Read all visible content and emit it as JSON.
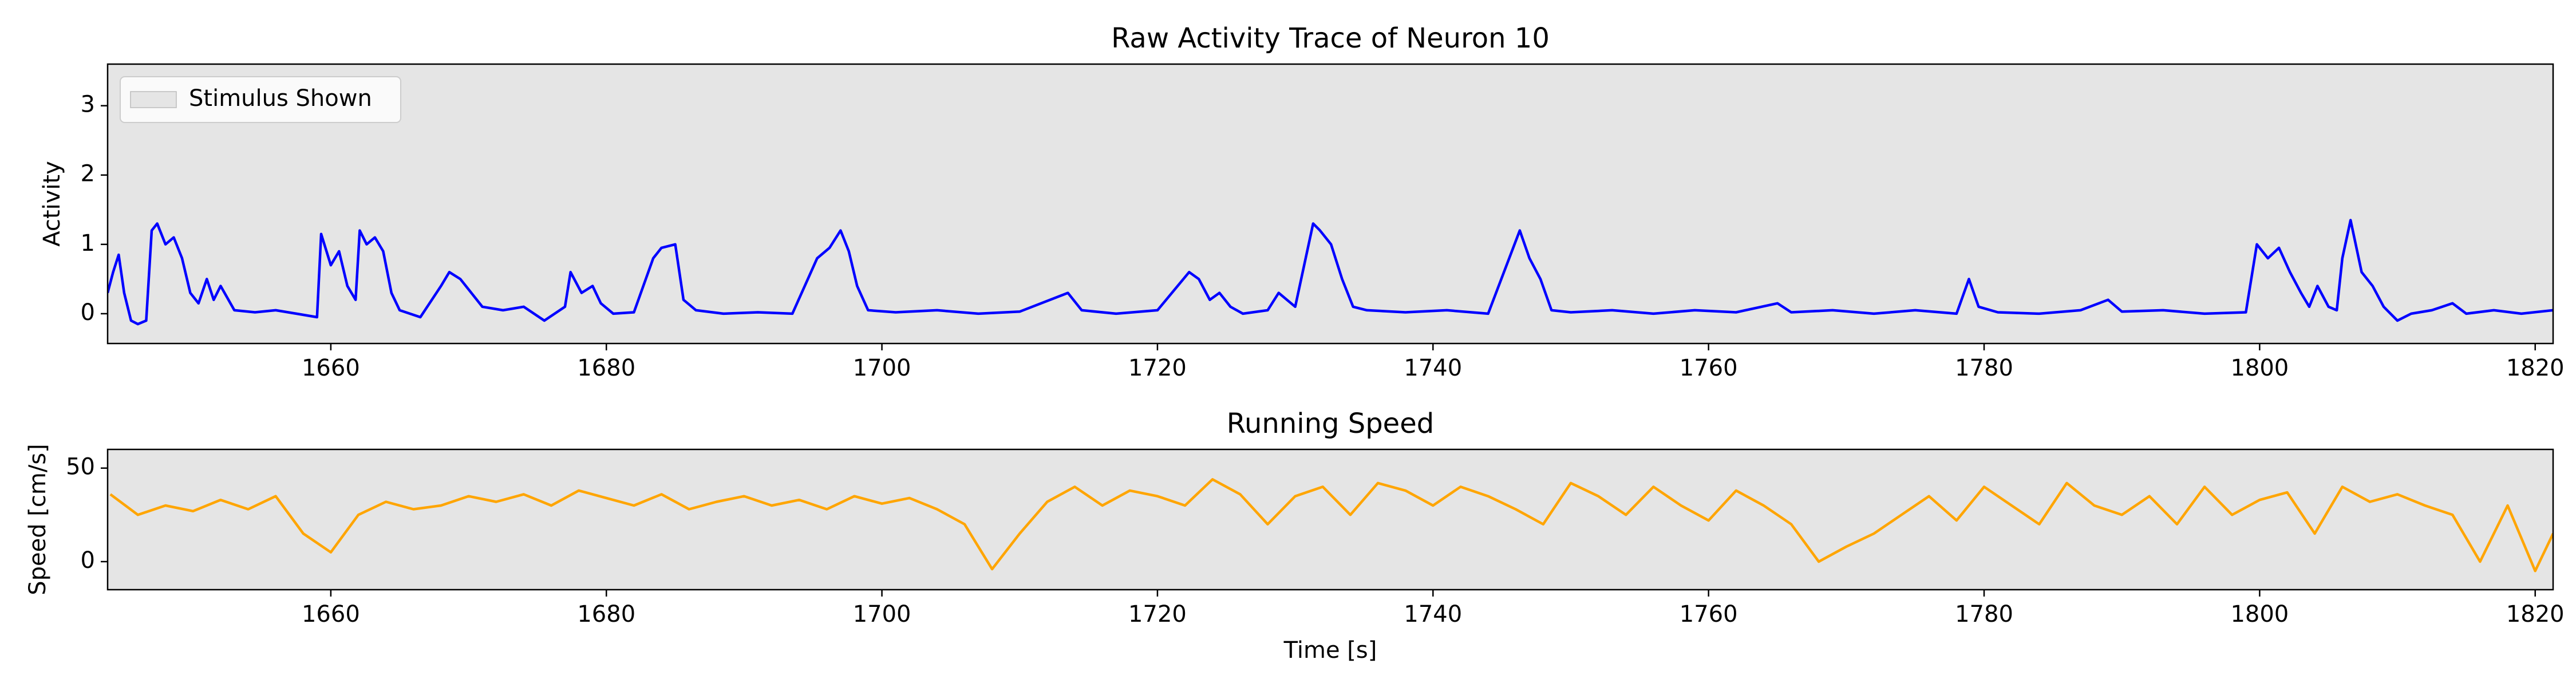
{
  "chart_data": [
    {
      "type": "line",
      "title": "Raw Activity Trace of Neuron 10",
      "ylabel": "Activity",
      "xlim": [
        1643.8,
        1821.3
      ],
      "ylim": [
        -0.43,
        3.6
      ],
      "xticks": [
        1660,
        1680,
        1700,
        1720,
        1740,
        1760,
        1780,
        1800,
        1820
      ],
      "yticks": [
        0,
        1,
        2,
        3
      ],
      "legend": "upper left",
      "spans": [
        {
          "label": "Stimulus Shown",
          "start": 1643.8,
          "end": 1821.3,
          "color": "#e5e5e5"
        }
      ],
      "x": [
        1643.8,
        1644.2,
        1644.6,
        1645.0,
        1645.5,
        1646.0,
        1646.6,
        1647.0,
        1647.4,
        1648.0,
        1648.6,
        1649.2,
        1649.8,
        1650.4,
        1651.0,
        1651.5,
        1652.0,
        1653.0,
        1654.5,
        1656.0,
        1657.5,
        1659.0,
        1659.3,
        1660.0,
        1660.6,
        1661.2,
        1661.8,
        1662.1,
        1662.6,
        1663.2,
        1663.8,
        1664.4,
        1665.0,
        1666.5,
        1668.0,
        1668.6,
        1669.4,
        1670.2,
        1671.0,
        1672.5,
        1674.0,
        1675.5,
        1677.0,
        1677.4,
        1678.2,
        1679.0,
        1679.6,
        1680.5,
        1682.0,
        1683.4,
        1684.0,
        1685.0,
        1685.6,
        1686.5,
        1688.5,
        1691.0,
        1693.5,
        1695.3,
        1696.2,
        1697.0,
        1697.6,
        1698.2,
        1699.0,
        1701.0,
        1704.0,
        1707.0,
        1710.0,
        1713.5,
        1714.5,
        1717.0,
        1720.0,
        1722.3,
        1723.0,
        1723.8,
        1724.5,
        1725.3,
        1726.2,
        1728.0,
        1728.8,
        1730.0,
        1731.3,
        1731.8,
        1732.6,
        1733.4,
        1734.2,
        1735.2,
        1738.0,
        1741.0,
        1744.0,
        1746.3,
        1747.0,
        1747.8,
        1748.6,
        1750.0,
        1753.0,
        1756.0,
        1759.0,
        1762.0,
        1765.0,
        1766.0,
        1769.0,
        1772.0,
        1775.0,
        1778.0,
        1778.9,
        1779.6,
        1781.0,
        1784.0,
        1787.0,
        1789.0,
        1790.0,
        1793.0,
        1796.0,
        1799.0,
        1799.8,
        1800.6,
        1801.4,
        1802.2,
        1803.0,
        1803.6,
        1804.2,
        1805.0,
        1805.6,
        1806.0,
        1806.6,
        1807.4,
        1808.2,
        1809.0,
        1810.0,
        1811.0,
        1812.5,
        1814.0,
        1815.0,
        1817.0,
        1819.0,
        1821.3
      ],
      "series": [
        {
          "color": "#0000ff",
          "values": [
            0.3,
            0.6,
            0.85,
            0.3,
            -0.1,
            -0.15,
            -0.1,
            1.2,
            1.3,
            1.0,
            1.1,
            0.8,
            0.3,
            0.15,
            0.5,
            0.2,
            0.4,
            0.05,
            0.02,
            0.05,
            0.0,
            -0.05,
            1.15,
            0.7,
            0.9,
            0.4,
            0.2,
            1.2,
            1.0,
            1.1,
            0.9,
            0.3,
            0.05,
            -0.05,
            0.4,
            0.6,
            0.5,
            0.3,
            0.1,
            0.05,
            0.1,
            -0.1,
            0.1,
            0.6,
            0.3,
            0.4,
            0.15,
            0.0,
            0.02,
            0.8,
            0.95,
            1.0,
            0.2,
            0.05,
            0.0,
            0.02,
            0.0,
            0.8,
            0.95,
            1.2,
            0.9,
            0.4,
            0.05,
            0.02,
            0.05,
            0.0,
            0.03,
            0.3,
            0.05,
            0.0,
            0.05,
            0.6,
            0.5,
            0.2,
            0.3,
            0.1,
            0.0,
            0.05,
            0.3,
            0.1,
            1.3,
            1.2,
            1.0,
            0.5,
            0.1,
            0.05,
            0.02,
            0.05,
            0.0,
            1.2,
            0.8,
            0.5,
            0.05,
            0.02,
            0.05,
            0.0,
            0.05,
            0.02,
            0.15,
            0.02,
            0.05,
            0.0,
            0.05,
            0.0,
            0.5,
            0.1,
            0.02,
            0.0,
            0.05,
            0.2,
            0.03,
            0.05,
            0.0,
            0.02,
            1.0,
            0.8,
            0.95,
            0.6,
            0.3,
            0.1,
            0.4,
            0.1,
            0.05,
            0.8,
            1.35,
            0.6,
            0.4,
            0.1,
            -0.1,
            0.0,
            0.05,
            0.15,
            0.0,
            0.05,
            0.0,
            0.05
          ]
        }
      ]
    },
    {
      "type": "line",
      "title": "Running Speed",
      "xlabel": "Time [s]",
      "ylabel": "Speed [cm/s]",
      "xlim": [
        1643.8,
        1821.3
      ],
      "ylim": [
        -15,
        60
      ],
      "xticks": [
        1660,
        1680,
        1700,
        1720,
        1740,
        1760,
        1780,
        1800,
        1820
      ],
      "yticks": [
        0,
        50
      ],
      "spans": [
        {
          "start": 1643.8,
          "end": 1821.3,
          "color": "#e5e5e5"
        }
      ],
      "x": [
        1644,
        1646,
        1648,
        1650,
        1652,
        1654,
        1656,
        1658,
        1660,
        1662,
        1664,
        1666,
        1668,
        1670,
        1672,
        1674,
        1676,
        1678,
        1680,
        1682,
        1684,
        1686,
        1688,
        1690,
        1692,
        1694,
        1696,
        1698,
        1700,
        1702,
        1704,
        1706,
        1708,
        1710,
        1712,
        1714,
        1716,
        1718,
        1720,
        1722,
        1724,
        1726,
        1728,
        1730,
        1732,
        1734,
        1736,
        1738,
        1740,
        1742,
        1744,
        1746,
        1748,
        1750,
        1752,
        1754,
        1756,
        1758,
        1760,
        1762,
        1764,
        1766,
        1768,
        1770,
        1772,
        1774,
        1776,
        1778,
        1780,
        1782,
        1784,
        1786,
        1788,
        1790,
        1792,
        1794,
        1796,
        1798,
        1800,
        1802,
        1804,
        1806,
        1808,
        1810,
        1812,
        1814,
        1816,
        1818,
        1820,
        1821.3
      ],
      "series": [
        {
          "color": "#ffa500",
          "values": [
            36,
            25,
            30,
            27,
            33,
            28,
            35,
            15,
            5,
            25,
            32,
            28,
            30,
            35,
            32,
            36,
            30,
            38,
            34,
            30,
            36,
            28,
            32,
            35,
            30,
            33,
            28,
            35,
            31,
            34,
            28,
            20,
            -4,
            15,
            32,
            40,
            30,
            38,
            35,
            30,
            44,
            36,
            20,
            35,
            40,
            25,
            42,
            38,
            30,
            40,
            35,
            28,
            20,
            42,
            35,
            25,
            40,
            30,
            22,
            38,
            30,
            20,
            0,
            8,
            15,
            25,
            35,
            22,
            40,
            30,
            20,
            42,
            30,
            25,
            35,
            20,
            40,
            25,
            33,
            37,
            15,
            40,
            32,
            36,
            30,
            25,
            0,
            30,
            -5,
            15
          ]
        }
      ]
    }
  ]
}
